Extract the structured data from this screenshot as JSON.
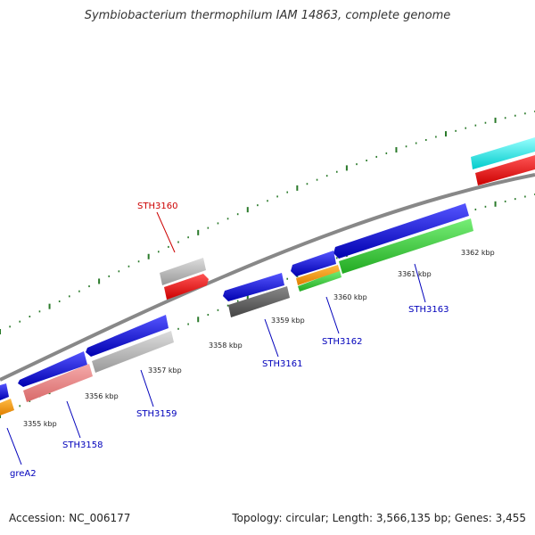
{
  "title": "Symbiobacterium thermophilum IAM 14863, complete genome",
  "footer": {
    "accession": "Accession: NC_006177",
    "summary": "Topology: circular; Length: 3,566,135 bp; Genes: 3,455"
  },
  "ticks": [
    {
      "label": "3355 kbp"
    },
    {
      "label": "3356 kbp"
    },
    {
      "label": "3357 kbp"
    },
    {
      "label": "3358 kbp"
    },
    {
      "label": "3359 kbp"
    },
    {
      "label": "3360 kbp"
    },
    {
      "label": "3361 kbp"
    },
    {
      "label": "3362 kbp"
    }
  ],
  "gene_labels": [
    {
      "name": "STH3160",
      "color": "#cc0000"
    },
    {
      "name": "STH3161",
      "color": "#0000bb"
    },
    {
      "name": "STH3162",
      "color": "#0000bb"
    },
    {
      "name": "STH3163",
      "color": "#0000bb"
    },
    {
      "name": "STH3159",
      "color": "#0000bb"
    },
    {
      "name": "STH3158",
      "color": "#0000bb"
    },
    {
      "name": "greA2",
      "color": "#0000bb"
    }
  ]
}
